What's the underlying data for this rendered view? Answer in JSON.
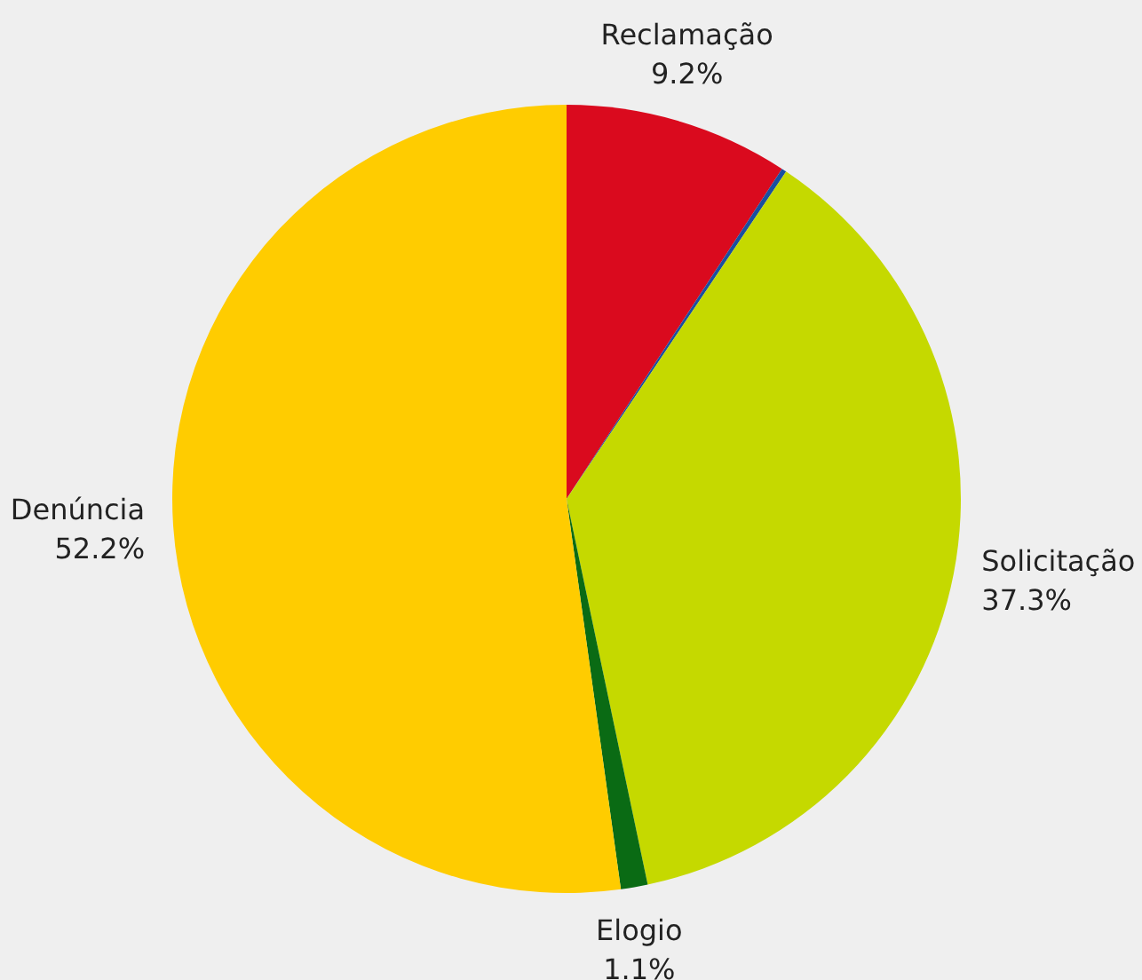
{
  "chart_data": {
    "type": "pie",
    "categories": [
      "Reclamação",
      null,
      "Solicitação",
      "Elogio",
      "Denúncia"
    ],
    "values": [
      9.2,
      0.2,
      37.3,
      1.1,
      52.2
    ],
    "colors": [
      "#da0a1e",
      "#1a4fa0",
      "#c5d900",
      "#0a6b14",
      "#ffcc00"
    ],
    "value_labels": [
      "9.2%",
      null,
      "37.3%",
      "1.1%",
      "52.2%"
    ],
    "legend": false
  }
}
